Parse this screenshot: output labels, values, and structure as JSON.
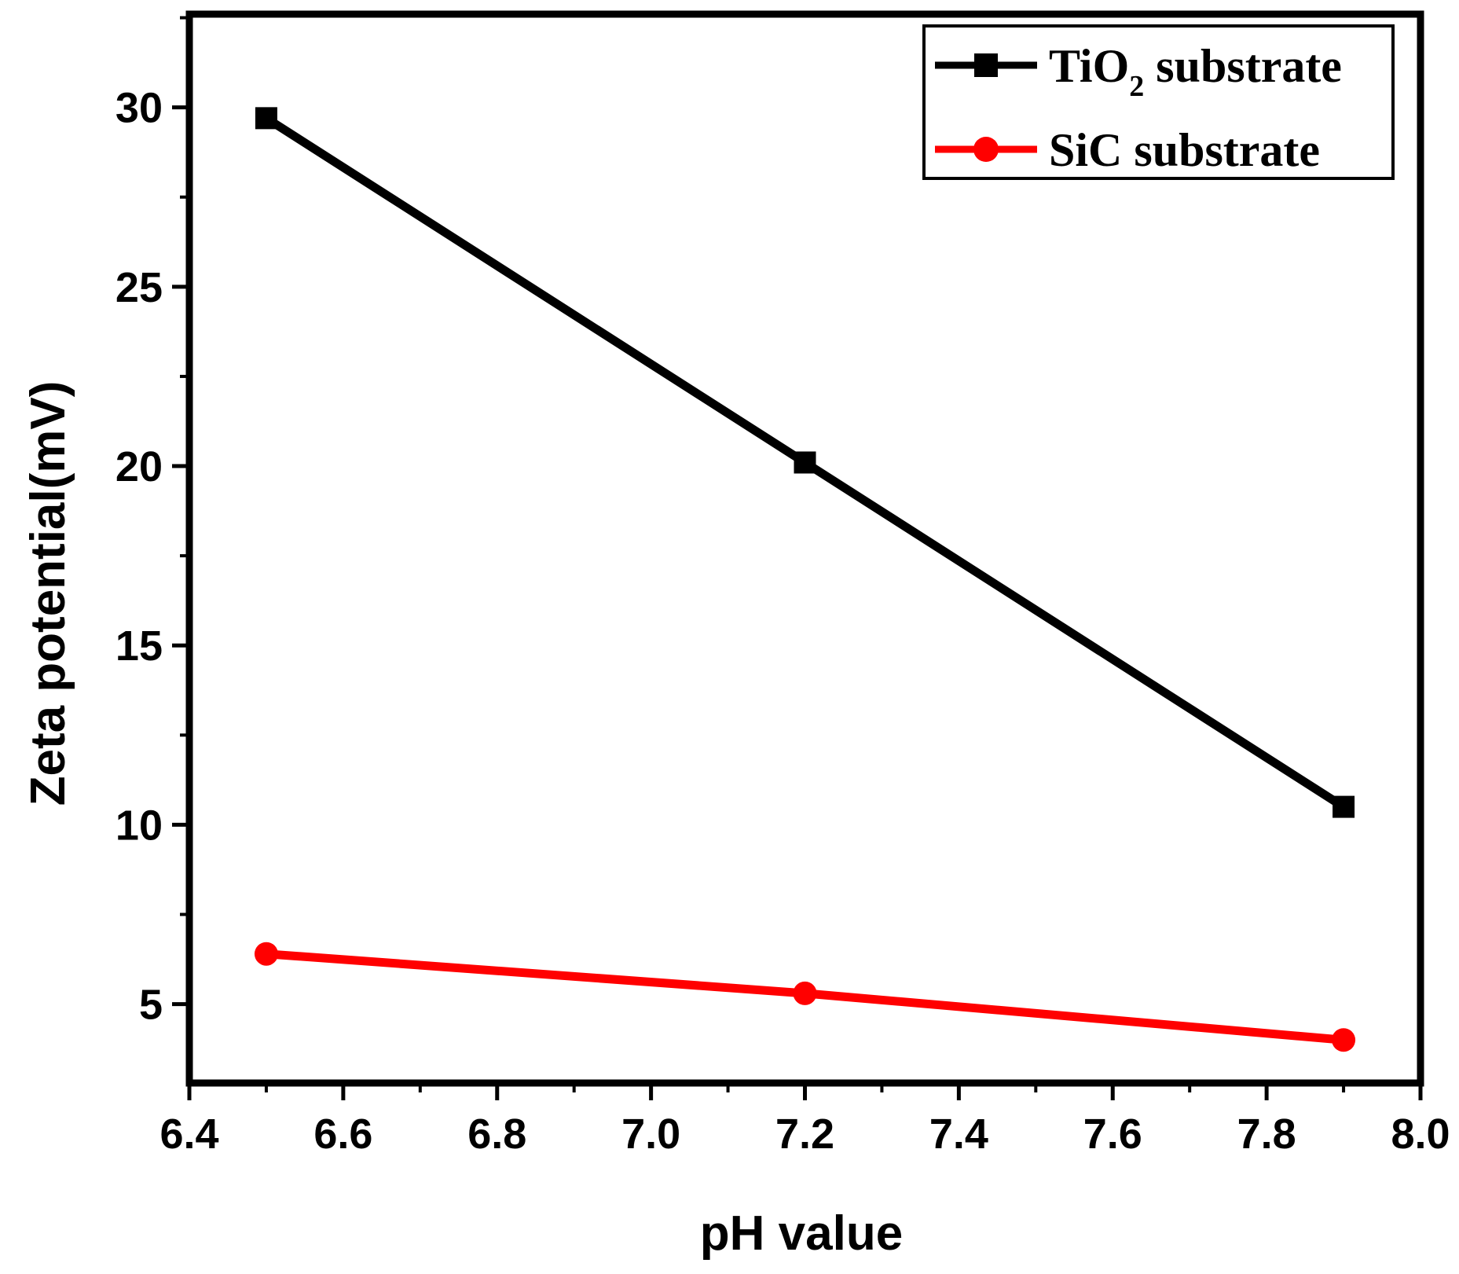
{
  "chart_data": {
    "type": "line",
    "title": "",
    "xlabel": "pH value",
    "ylabel": "Zeta potential(mV)",
    "xlim": [
      6.4,
      8.0
    ],
    "ylim": [
      2.8,
      32.6
    ],
    "x_ticks": [
      6.4,
      6.6,
      6.8,
      7.0,
      7.2,
      7.4,
      7.6,
      7.8,
      8.0
    ],
    "x_tick_labels": [
      "6.4",
      "6.6",
      "6.8",
      "7.0",
      "7.2",
      "7.4",
      "7.6",
      "7.8",
      "8.0"
    ],
    "y_ticks": [
      5,
      10,
      15,
      20,
      25,
      30
    ],
    "y_tick_labels": [
      "5",
      "10",
      "15",
      "20",
      "25",
      "30"
    ],
    "grid": false,
    "legend_position": "top-right",
    "series": [
      {
        "name": "TiO2 substrate",
        "legend_main": "TiO",
        "legend_sub": "2",
        "legend_rest": " substrate",
        "color": "#000000",
        "marker": "square",
        "x": [
          6.5,
          7.2,
          7.9
        ],
        "values": [
          29.7,
          20.1,
          10.5
        ]
      },
      {
        "name": "SiC substrate",
        "legend_main": "SiC substrate",
        "color": "#ff0000",
        "marker": "circle",
        "x": [
          6.5,
          7.2,
          7.9
        ],
        "values": [
          6.4,
          5.3,
          4.0
        ]
      }
    ]
  }
}
